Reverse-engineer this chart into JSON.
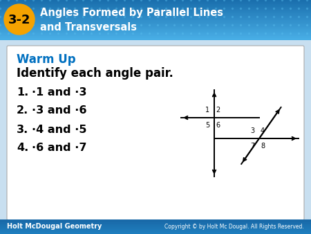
{
  "header_bg_top": "#1a6fad",
  "header_bg_bottom": "#4ab0e8",
  "header_text_color": "#ffffff",
  "badge_color": "#f5a200",
  "badge_text": "3-2",
  "header_title_line1": "Angles Formed by Parallel Lines",
  "header_title_line2": "and Transversals",
  "warm_up_color": "#0070c0",
  "warm_up_text": "Warm Up",
  "subtitle_text": "Identify each angle pair.",
  "items": [
    {
      "num": "1.",
      "text": "∙1 and ∙3"
    },
    {
      "num": "2.",
      "text": "∙3 and ∙6"
    },
    {
      "num": "3.",
      "text": "∙4 and ∙5"
    },
    {
      "num": "4.",
      "text": "∙6 and ∙7"
    }
  ],
  "footer_left": "Holt McDougal Geometry",
  "footer_right": "Copyright © by Holt Mc Dougal. All Rights Reserved.",
  "footer_bg": "#1868a7",
  "main_bg": "#c8dff0",
  "white_bg": "#ffffff",
  "box_border": "#aaaaaa",
  "fig_w": 4.5,
  "fig_h": 3.38,
  "dpi": 100
}
